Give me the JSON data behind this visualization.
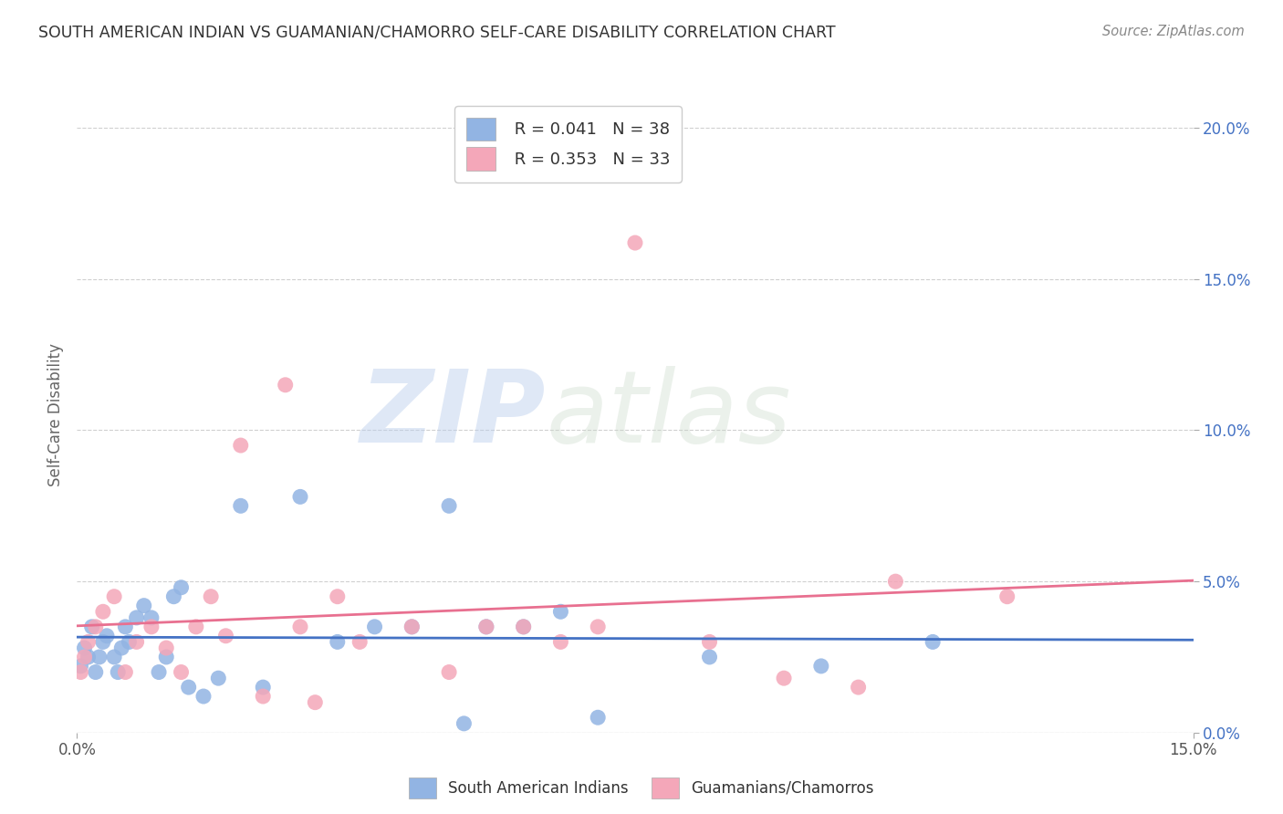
{
  "title": "SOUTH AMERICAN INDIAN VS GUAMANIAN/CHAMORRO SELF-CARE DISABILITY CORRELATION CHART",
  "source": "Source: ZipAtlas.com",
  "ylabel": "Self-Care Disability",
  "ytick_vals": [
    0.0,
    5.0,
    10.0,
    15.0,
    20.0
  ],
  "xlim": [
    0.0,
    15.0
  ],
  "ylim": [
    0.0,
    21.0
  ],
  "blue_R": 0.041,
  "blue_N": 38,
  "pink_R": 0.353,
  "pink_N": 33,
  "blue_color": "#92b4e3",
  "pink_color": "#f4a7b9",
  "blue_line_color": "#4472c4",
  "pink_line_color": "#e87090",
  "watermark_zip": "ZIP",
  "watermark_atlas": "atlas",
  "legend_label_blue": "South American Indians",
  "legend_label_pink": "Guamanians/Chamorros",
  "blue_scatter_x": [
    0.05,
    0.1,
    0.15,
    0.2,
    0.25,
    0.3,
    0.35,
    0.4,
    0.5,
    0.55,
    0.6,
    0.65,
    0.7,
    0.8,
    0.9,
    1.0,
    1.1,
    1.2,
    1.3,
    1.4,
    1.5,
    1.7,
    1.9,
    2.2,
    2.5,
    3.0,
    3.5,
    4.0,
    4.5,
    5.0,
    5.2,
    5.5,
    6.0,
    6.5,
    7.0,
    8.5,
    10.0,
    11.5
  ],
  "blue_scatter_y": [
    2.2,
    2.8,
    2.5,
    3.5,
    2.0,
    2.5,
    3.0,
    3.2,
    2.5,
    2.0,
    2.8,
    3.5,
    3.0,
    3.8,
    4.2,
    3.8,
    2.0,
    2.5,
    4.5,
    4.8,
    1.5,
    1.2,
    1.8,
    7.5,
    1.5,
    7.8,
    3.0,
    3.5,
    3.5,
    7.5,
    0.3,
    3.5,
    3.5,
    4.0,
    0.5,
    2.5,
    2.2,
    3.0
  ],
  "pink_scatter_x": [
    0.05,
    0.1,
    0.15,
    0.25,
    0.35,
    0.5,
    0.65,
    0.8,
    1.0,
    1.2,
    1.4,
    1.6,
    1.8,
    2.0,
    2.2,
    2.5,
    2.8,
    3.0,
    3.2,
    3.5,
    3.8,
    4.5,
    5.0,
    5.5,
    6.0,
    6.5,
    7.0,
    7.5,
    8.5,
    9.5,
    10.5,
    11.0,
    12.5
  ],
  "pink_scatter_y": [
    2.0,
    2.5,
    3.0,
    3.5,
    4.0,
    4.5,
    2.0,
    3.0,
    3.5,
    2.8,
    2.0,
    3.5,
    4.5,
    3.2,
    9.5,
    1.2,
    11.5,
    3.5,
    1.0,
    4.5,
    3.0,
    3.5,
    2.0,
    3.5,
    3.5,
    3.0,
    3.5,
    16.2,
    3.0,
    1.8,
    1.5,
    5.0,
    4.5
  ]
}
